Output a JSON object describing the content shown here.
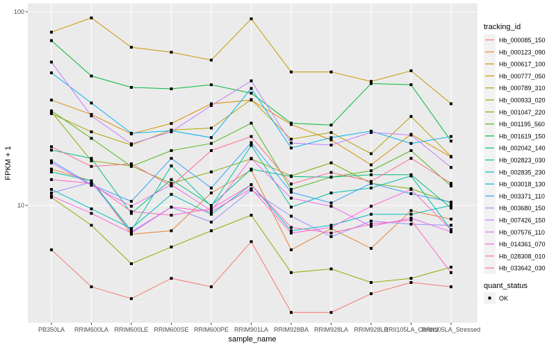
{
  "chart_data": {
    "type": "line",
    "title": "",
    "xlabel": "sample_name",
    "ylabel": "FPKM + 1",
    "y_scale": "log10",
    "ylim": [
      2.8,
      118
    ],
    "y_ticks": [
      {
        "value": 10,
        "label": "10"
      },
      {
        "value": 100,
        "label": "100"
      }
    ],
    "grid": true,
    "legend_position": "right",
    "categories": [
      "PB350LA",
      "RRIM600LA",
      "RRIM600LE",
      "RRIM600SE",
      "RRIM600PE",
      "RRIM901LA",
      "RRIM928BA",
      "RRIM928LA",
      "RRIM928LB",
      "RRII105LA_Control",
      "RRII105LA_Stressed"
    ],
    "legend_title": "tracking_id",
    "series": [
      {
        "name": "Hb_000085_150",
        "color": "#F8766D",
        "values": [
          5.9,
          3.8,
          3.3,
          4.2,
          3.8,
          6.5,
          2.8,
          2.8,
          3.5,
          4.0,
          3.8
        ]
      },
      {
        "name": "Hb_000123_090",
        "color": "#EA8331",
        "values": [
          15.4,
          13.4,
          7.1,
          7.4,
          11.6,
          15.2,
          5.9,
          7.6,
          6.0,
          9.4,
          8.5
        ]
      },
      {
        "name": "Hb_000617_100",
        "color": "#DB8E00",
        "values": [
          35.0,
          29.5,
          23.4,
          26.5,
          33.5,
          35.0,
          26.2,
          21.8,
          16.2,
          23.3,
          17.8
        ]
      },
      {
        "name": "Hb_000777_050",
        "color": "#C99800",
        "values": [
          78.5,
          93.0,
          65.6,
          61.8,
          56.3,
          92.0,
          48.9,
          48.9,
          43.7,
          49.6,
          33.5
        ]
      },
      {
        "name": "Hb_000789_310",
        "color": "#B3A100",
        "values": [
          29.8,
          24.0,
          20.5,
          24.5,
          25.1,
          35.2,
          22.0,
          23.8,
          18.5,
          28.8,
          17.9
        ]
      },
      {
        "name": "Hb_000933_020",
        "color": "#9AA800",
        "values": [
          11.0,
          7.9,
          5.0,
          6.1,
          7.4,
          8.9,
          4.5,
          4.7,
          4.0,
          4.2,
          4.8
        ]
      },
      {
        "name": "Hb_001047_220",
        "color": "#7CAE00",
        "values": [
          30.5,
          17.0,
          16.0,
          13.0,
          14.9,
          17.4,
          14.2,
          16.6,
          13.0,
          12.2,
          10.3
        ]
      },
      {
        "name": "Hb_001195_560",
        "color": "#52B61A",
        "values": [
          30.8,
          22.2,
          15.9,
          19.2,
          20.9,
          26.6,
          12.1,
          14.0,
          15.1,
          19.2,
          12.6
        ]
      },
      {
        "name": "Hb_001619_150",
        "color": "#00BA38",
        "values": [
          71.0,
          46.6,
          40.7,
          40.0,
          42.0,
          38.0,
          26.6,
          26.0,
          42.6,
          42.0,
          21.5
        ]
      },
      {
        "name": "Hb_002042_140",
        "color": "#00BF7D",
        "values": [
          19.3,
          17.5,
          9.1,
          13.6,
          10.0,
          15.4,
          14.1,
          14.0,
          14.4,
          14.4,
          9.7
        ]
      },
      {
        "name": "Hb_002823_030",
        "color": "#00C1A3",
        "values": [
          14.9,
          13.4,
          7.4,
          16.0,
          9.9,
          20.4,
          9.8,
          11.6,
          12.3,
          14.2,
          7.5
        ]
      },
      {
        "name": "Hb_002835_230",
        "color": "#00BFC4",
        "values": [
          12.1,
          9.6,
          7.6,
          11.4,
          9.0,
          12.8,
          7.4,
          7.9,
          9.0,
          9.0,
          10.0
        ]
      },
      {
        "name": "Hb_003018_130",
        "color": "#00B4EF",
        "values": [
          48.4,
          33.8,
          23.6,
          24.3,
          22.4,
          40.2,
          19.8,
          22.4,
          24.2,
          20.9,
          22.7
        ]
      },
      {
        "name": "Hb_003371_110",
        "color": "#35A2FF",
        "values": [
          17.0,
          12.8,
          10.5,
          17.5,
          12.3,
          21.1,
          11.7,
          10.3,
          13.0,
          11.5,
          10.4
        ]
      },
      {
        "name": "Hb_003680_150",
        "color": "#9590FF",
        "values": [
          11.6,
          13.2,
          7.3,
          9.8,
          8.2,
          12.0,
          8.8,
          6.9,
          8.3,
          8.0,
          7.9
        ]
      },
      {
        "name": "Hb_007426_150",
        "color": "#C77CFF",
        "values": [
          55.0,
          29.0,
          20.8,
          24.0,
          32.8,
          44.0,
          21.0,
          20.5,
          23.8,
          23.1,
          15.7
        ]
      },
      {
        "name": "Hb_007576_110",
        "color": "#E76BF3",
        "values": [
          16.6,
          12.7,
          9.9,
          12.8,
          9.4,
          17.5,
          10.9,
          9.9,
          7.8,
          8.6,
          7.3
        ]
      },
      {
        "name": "Hb_014361_070",
        "color": "#FA62DB",
        "values": [
          11.2,
          9.1,
          7.2,
          9.8,
          9.3,
          12.2,
          7.2,
          7.7,
          9.9,
          12.1,
          7.5
        ]
      },
      {
        "name": "Hb_028308_010",
        "color": "#FF62BC",
        "values": [
          13.6,
          13.0,
          9.3,
          8.9,
          9.6,
          12.8,
          7.7,
          7.2,
          8.0,
          8.4,
          4.5
        ]
      },
      {
        "name": "Hb_033642_030",
        "color": "#FF6C91",
        "values": [
          20.1,
          15.9,
          16.4,
          12.6,
          19.2,
          22.7,
          12.9,
          14.8,
          13.3,
          17.5,
          13.0
        ]
      }
    ],
    "shape_legend": {
      "title": "quant_status",
      "items": [
        {
          "label": "OK",
          "shape": "square"
        }
      ]
    }
  }
}
